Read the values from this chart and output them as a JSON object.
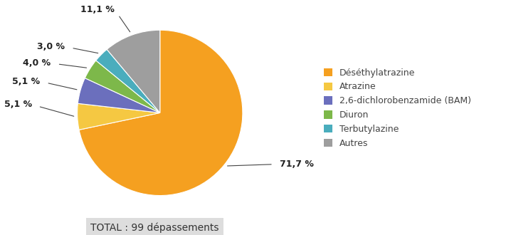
{
  "labels": [
    "Déséthylatrazine",
    "Atrazine",
    "2,6-dichlorobenzamide (BAM)",
    "Diuron",
    "Terbutylazine",
    "Autres"
  ],
  "values": [
    71.7,
    5.1,
    5.1,
    4.0,
    3.0,
    11.1
  ],
  "colors": [
    "#F5A020",
    "#F5C842",
    "#6B6FBD",
    "#7DB84A",
    "#4AADBD",
    "#9E9E9E"
  ],
  "pct_labels": [
    "71,7 %",
    "5,1 %",
    "5,1 %",
    "4,0 %",
    "3,0 %",
    "11,1 %"
  ],
  "total_label": "TOTAL : 99 dépassements",
  "legend_labels": [
    "Déséthylatrazine",
    "Atrazine",
    "2,6-dichlorobenzamide (BAM)",
    "Diuron",
    "Terbutylazine",
    "Autres"
  ]
}
